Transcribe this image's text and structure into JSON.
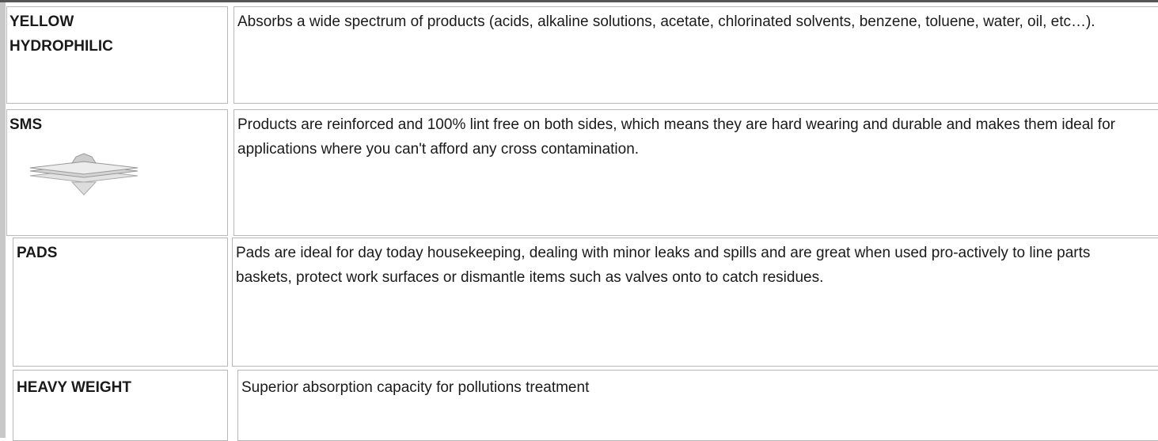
{
  "table": {
    "rows": [
      {
        "label": "YELLOW HYDROPHILIC",
        "description": "Absorbs a wide spectrum of products (acids, alkaline solutions, acetate, chlorinated solvents, benzene, toluene, water, oil, etc…)."
      },
      {
        "label": "SMS",
        "description": "Products are reinforced and 100% lint free on both sides, which means they are hard wearing and durable and makes them ideal for applications where you can't afford any cross contamination."
      },
      {
        "label": "PADS",
        "description": "Pads are ideal for day today housekeeping, dealing with minor leaks and spills and are great when used pro-actively to line parts baskets, protect work surfaces or dismantle items such as valves onto to catch residues."
      },
      {
        "label": "HEAVY WEIGHT",
        "description": "Superior absorption capacity for pollutions treatment"
      }
    ]
  }
}
